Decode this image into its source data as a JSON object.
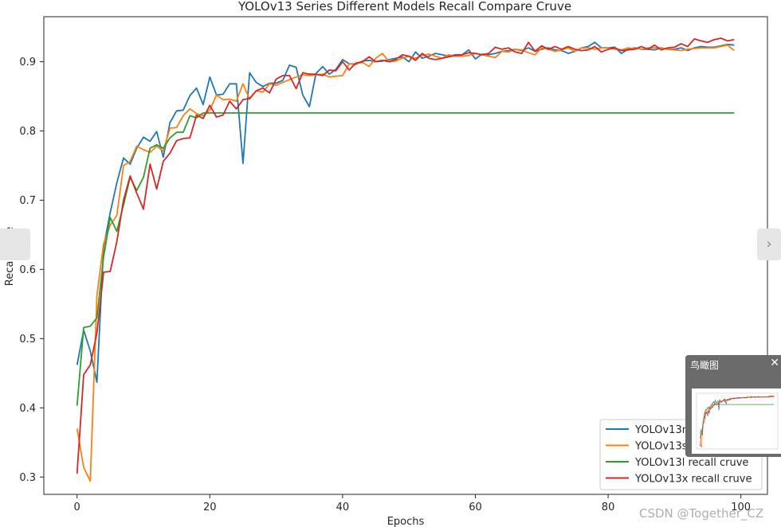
{
  "chart_data": {
    "type": "line",
    "title": "YOLOv13 Series Different Models Recall Compare Cruve",
    "xlabel": "Epochs",
    "ylabel": "RecallValue",
    "xlim": [
      -5,
      104
    ],
    "ylim": [
      0.275,
      0.965
    ],
    "x_ticks": [
      0,
      20,
      40,
      60,
      80,
      100
    ],
    "y_ticks": [
      0.3,
      0.4,
      0.5,
      0.6,
      0.7,
      0.8,
      0.9
    ],
    "grid": false,
    "legend_position": "lower-right",
    "x": [
      0,
      1,
      2,
      3,
      4,
      5,
      6,
      7,
      8,
      9,
      10,
      11,
      12,
      13,
      14,
      15,
      16,
      17,
      18,
      19,
      20,
      21,
      22,
      23,
      24,
      25,
      26,
      27,
      28,
      29,
      30,
      31,
      32,
      33,
      34,
      35,
      36,
      37,
      38,
      39,
      40,
      41,
      42,
      43,
      44,
      45,
      46,
      47,
      48,
      49,
      50,
      51,
      52,
      53,
      54,
      55,
      56,
      57,
      58,
      59,
      60,
      61,
      62,
      63,
      64,
      65,
      66,
      67,
      68,
      69,
      70,
      71,
      72,
      73,
      74,
      75,
      76,
      77,
      78,
      79,
      80,
      81,
      82,
      83,
      84,
      85,
      86,
      87,
      88,
      89,
      90,
      91,
      92,
      93,
      94,
      95,
      96,
      97,
      98,
      99
    ],
    "series": [
      {
        "name": "YOLOv13n recall cruve",
        "color": "#1f77b4",
        "values": [
          0.462,
          0.512,
          0.482,
          0.437,
          0.632,
          0.682,
          0.725,
          0.761,
          0.752,
          0.775,
          0.791,
          0.785,
          0.799,
          0.762,
          0.812,
          0.829,
          0.83,
          0.851,
          0.862,
          0.838,
          0.878,
          0.852,
          0.853,
          0.868,
          0.868,
          0.753,
          0.884,
          0.87,
          0.864,
          0.869,
          0.869,
          0.873,
          0.895,
          0.892,
          0.852,
          0.835,
          0.883,
          0.893,
          0.882,
          0.889,
          0.903,
          0.897,
          0.896,
          0.901,
          0.902,
          0.9,
          0.901,
          0.903,
          0.905,
          0.907,
          0.9,
          0.914,
          0.905,
          0.908,
          0.912,
          0.91,
          0.908,
          0.91,
          0.91,
          0.917,
          0.904,
          0.911,
          0.91,
          0.912,
          0.915,
          0.916,
          0.918,
          0.916,
          0.92,
          0.915,
          0.918,
          0.92,
          0.917,
          0.916,
          0.912,
          0.915,
          0.92,
          0.922,
          0.928,
          0.92,
          0.92,
          0.921,
          0.912,
          0.918,
          0.92,
          0.918,
          0.918,
          0.917,
          0.92,
          0.918,
          0.918,
          0.92,
          0.916,
          0.92,
          0.922,
          0.921,
          0.921,
          0.923,
          0.925,
          0.924
        ]
      },
      {
        "name": "YOLOv13s recall cruve",
        "color": "#ff7f0e",
        "values": [
          0.37,
          0.314,
          0.294,
          0.562,
          0.637,
          0.664,
          0.678,
          0.75,
          0.756,
          0.778,
          0.773,
          0.769,
          0.778,
          0.771,
          0.804,
          0.805,
          0.822,
          0.832,
          0.825,
          0.822,
          0.83,
          0.852,
          0.845,
          0.846,
          0.843,
          0.868,
          0.846,
          0.858,
          0.856,
          0.868,
          0.866,
          0.87,
          0.874,
          0.878,
          0.881,
          0.88,
          0.881,
          0.882,
          0.878,
          0.879,
          0.88,
          0.897,
          0.897,
          0.899,
          0.893,
          0.905,
          0.912,
          0.9,
          0.901,
          0.905,
          0.908,
          0.905,
          0.909,
          0.911,
          0.908,
          0.905,
          0.91,
          0.908,
          0.908,
          0.909,
          0.912,
          0.91,
          0.908,
          0.906,
          0.915,
          0.914,
          0.918,
          0.917,
          0.913,
          0.91,
          0.92,
          0.918,
          0.915,
          0.917,
          0.92,
          0.915,
          0.92,
          0.92,
          0.918,
          0.92,
          0.92,
          0.918,
          0.917,
          0.92,
          0.919,
          0.918,
          0.92,
          0.92,
          0.92,
          0.918,
          0.917,
          0.916,
          0.918,
          0.919,
          0.92,
          0.92,
          0.92,
          0.922,
          0.924,
          0.916
        ]
      },
      {
        "name": "YOLOv13l recall cruve",
        "color": "#2ca02c",
        "values": [
          0.403,
          0.516,
          0.518,
          0.53,
          0.618,
          0.675,
          0.655,
          0.693,
          0.733,
          0.714,
          0.733,
          0.775,
          0.78,
          0.775,
          0.79,
          0.798,
          0.798,
          0.822,
          0.819,
          0.826,
          0.826,
          0.826,
          0.826,
          0.826,
          0.826,
          0.826,
          0.826,
          0.826,
          0.826,
          0.826,
          0.826,
          0.826,
          0.826,
          0.826,
          0.826,
          0.826,
          0.826,
          0.826,
          0.826,
          0.826,
          0.826,
          0.826,
          0.826,
          0.826,
          0.826,
          0.826,
          0.826,
          0.826,
          0.826,
          0.826,
          0.826,
          0.826,
          0.826,
          0.826,
          0.826,
          0.826,
          0.826,
          0.826,
          0.826,
          0.826,
          0.826,
          0.826,
          0.826,
          0.826,
          0.826,
          0.826,
          0.826,
          0.826,
          0.826,
          0.826,
          0.826,
          0.826,
          0.826,
          0.826,
          0.826,
          0.826,
          0.826,
          0.826,
          0.826,
          0.826,
          0.826,
          0.826,
          0.826,
          0.826,
          0.826,
          0.826,
          0.826,
          0.826,
          0.826,
          0.826,
          0.826,
          0.826,
          0.826,
          0.826,
          0.826,
          0.826,
          0.826,
          0.826,
          0.826,
          0.826
        ]
      },
      {
        "name": "YOLOv13x recall cruve",
        "color": "#d62728",
        "values": [
          0.305,
          0.448,
          0.462,
          0.508,
          0.596,
          0.597,
          0.64,
          0.7,
          0.735,
          0.71,
          0.687,
          0.752,
          0.716,
          0.756,
          0.768,
          0.786,
          0.789,
          0.79,
          0.823,
          0.818,
          0.837,
          0.82,
          0.823,
          0.843,
          0.832,
          0.845,
          0.847,
          0.858,
          0.862,
          0.855,
          0.875,
          0.88,
          0.88,
          0.861,
          0.884,
          0.882,
          0.882,
          0.88,
          0.888,
          0.887,
          0.9,
          0.888,
          0.898,
          0.9,
          0.907,
          0.9,
          0.902,
          0.9,
          0.903,
          0.91,
          0.908,
          0.902,
          0.912,
          0.905,
          0.903,
          0.905,
          0.907,
          0.909,
          0.91,
          0.913,
          0.912,
          0.91,
          0.912,
          0.921,
          0.918,
          0.92,
          0.914,
          0.912,
          0.928,
          0.915,
          0.923,
          0.918,
          0.922,
          0.918,
          0.922,
          0.918,
          0.916,
          0.917,
          0.922,
          0.914,
          0.918,
          0.92,
          0.916,
          0.917,
          0.918,
          0.922,
          0.918,
          0.924,
          0.917,
          0.92,
          0.921,
          0.926,
          0.922,
          0.933,
          0.93,
          0.928,
          0.932,
          0.934,
          0.93,
          0.932
        ]
      }
    ]
  },
  "ui": {
    "birdseye_title": "鸟瞰图",
    "close_glyph": "✕",
    "nav_right_glyph": "›",
    "watermark": "CSDN @Together_CZ"
  }
}
